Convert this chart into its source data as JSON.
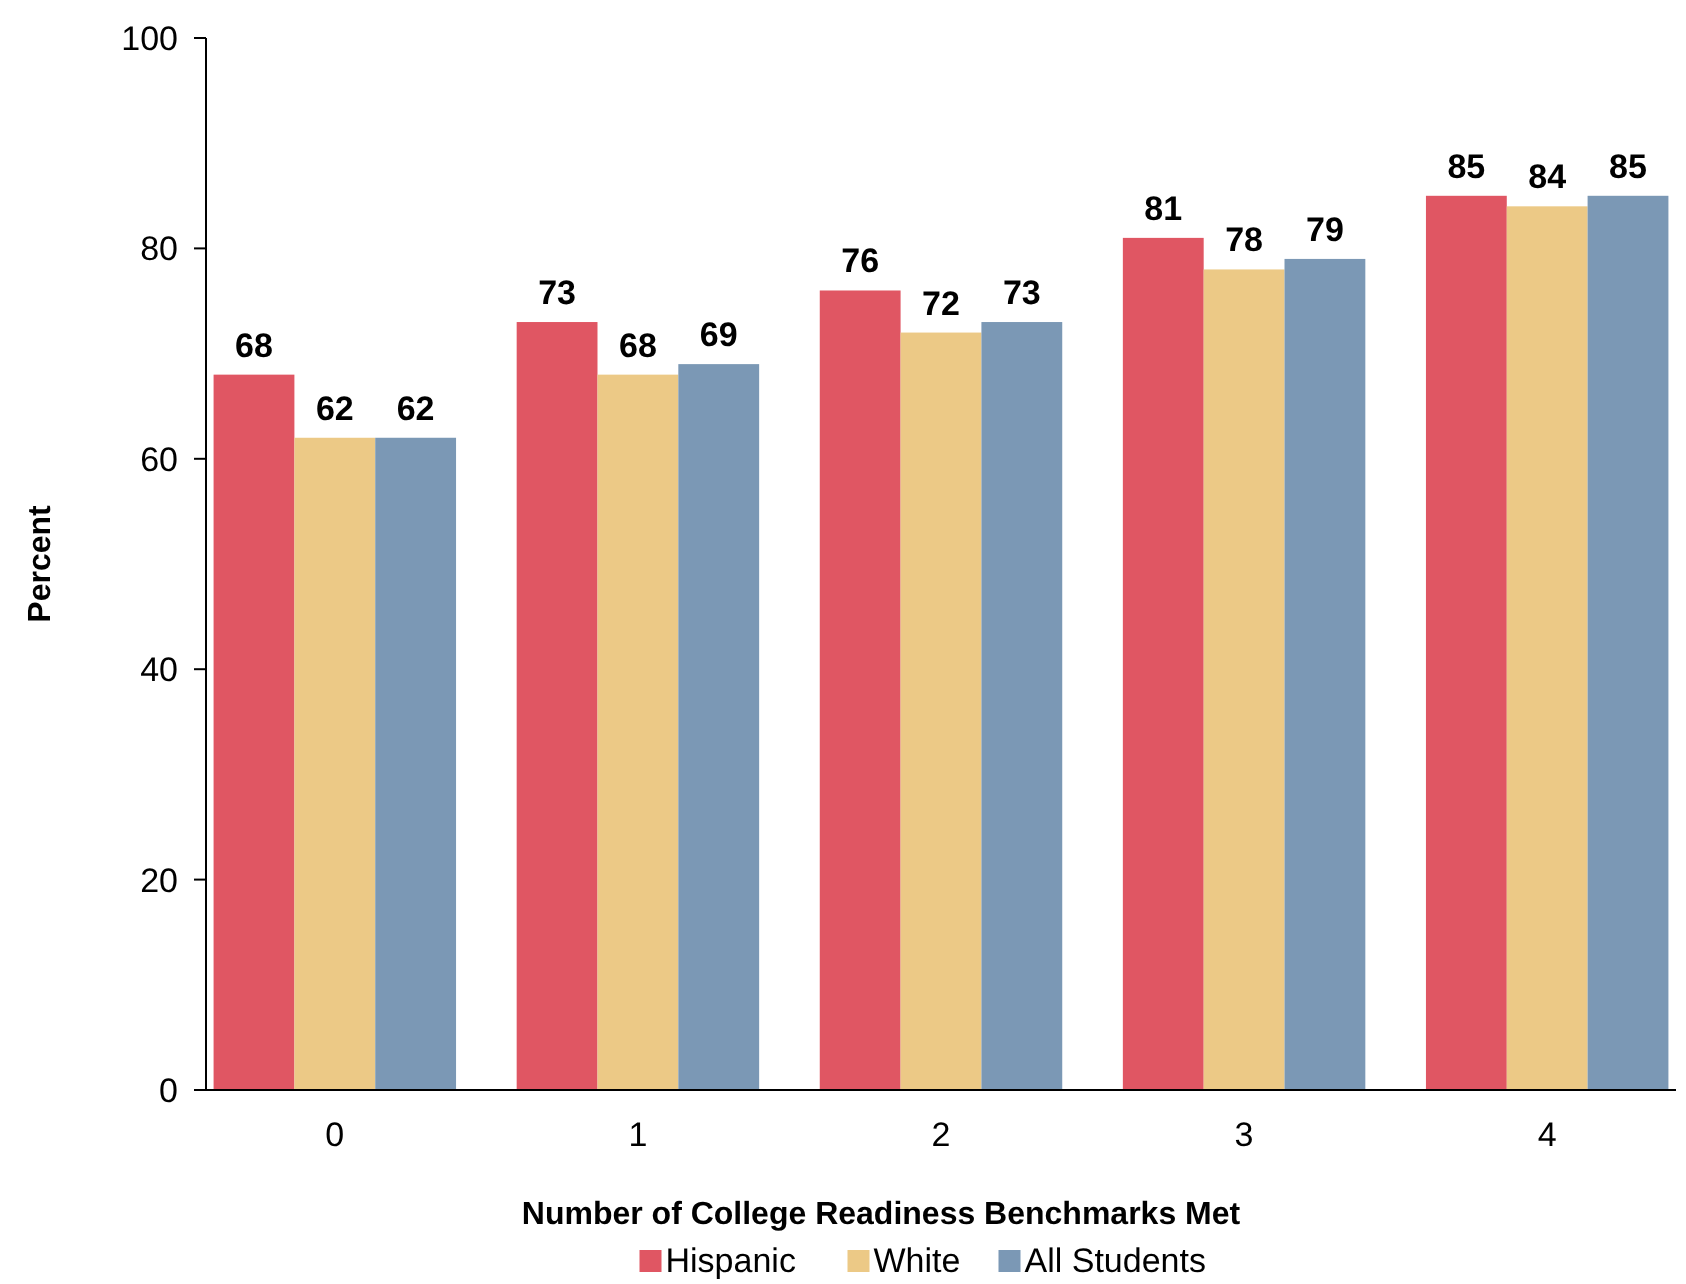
{
  "chart_data": {
    "type": "bar",
    "xlabel": "Number of College Readiness Benchmarks Met",
    "ylabel": "Percent",
    "categories": [
      "0",
      "1",
      "2",
      "3",
      "4"
    ],
    "series": [
      {
        "name": "Hispanic",
        "color": "#e05663",
        "values": [
          68,
          73,
          76,
          81,
          85
        ]
      },
      {
        "name": "White",
        "color": "#ecc986",
        "values": [
          62,
          68,
          72,
          78,
          84
        ]
      },
      {
        "name": "All Students",
        "color": "#7b98b5",
        "values": [
          62,
          69,
          73,
          79,
          85
        ]
      }
    ],
    "ylim": [
      0,
      100
    ],
    "yticks": [
      0,
      20,
      40,
      60,
      80,
      100
    ],
    "data_labels": true,
    "legend": "bottom",
    "grid": false
  }
}
